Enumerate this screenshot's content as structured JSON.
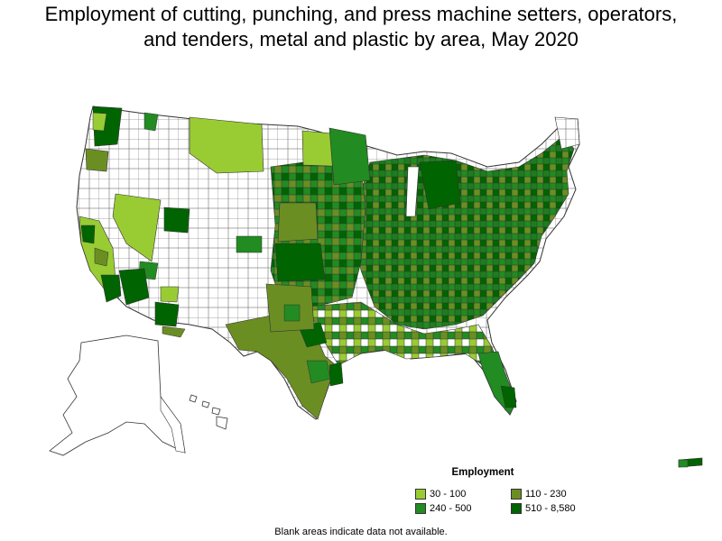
{
  "title_line1": "Employment of cutting, punching, and press machine setters, operators,",
  "title_line2": "and tenders, metal and plastic by area, May 2020",
  "legend": {
    "title": "Employment",
    "items": [
      {
        "label": "30 - 100",
        "color": "#99cc33"
      },
      {
        "label": "110 - 230",
        "color": "#6b8e23"
      },
      {
        "label": "240 - 500",
        "color": "#228b22"
      },
      {
        "label": "510 - 8,580",
        "color": "#006400"
      }
    ]
  },
  "footnote": "Blank areas indicate data not available."
}
